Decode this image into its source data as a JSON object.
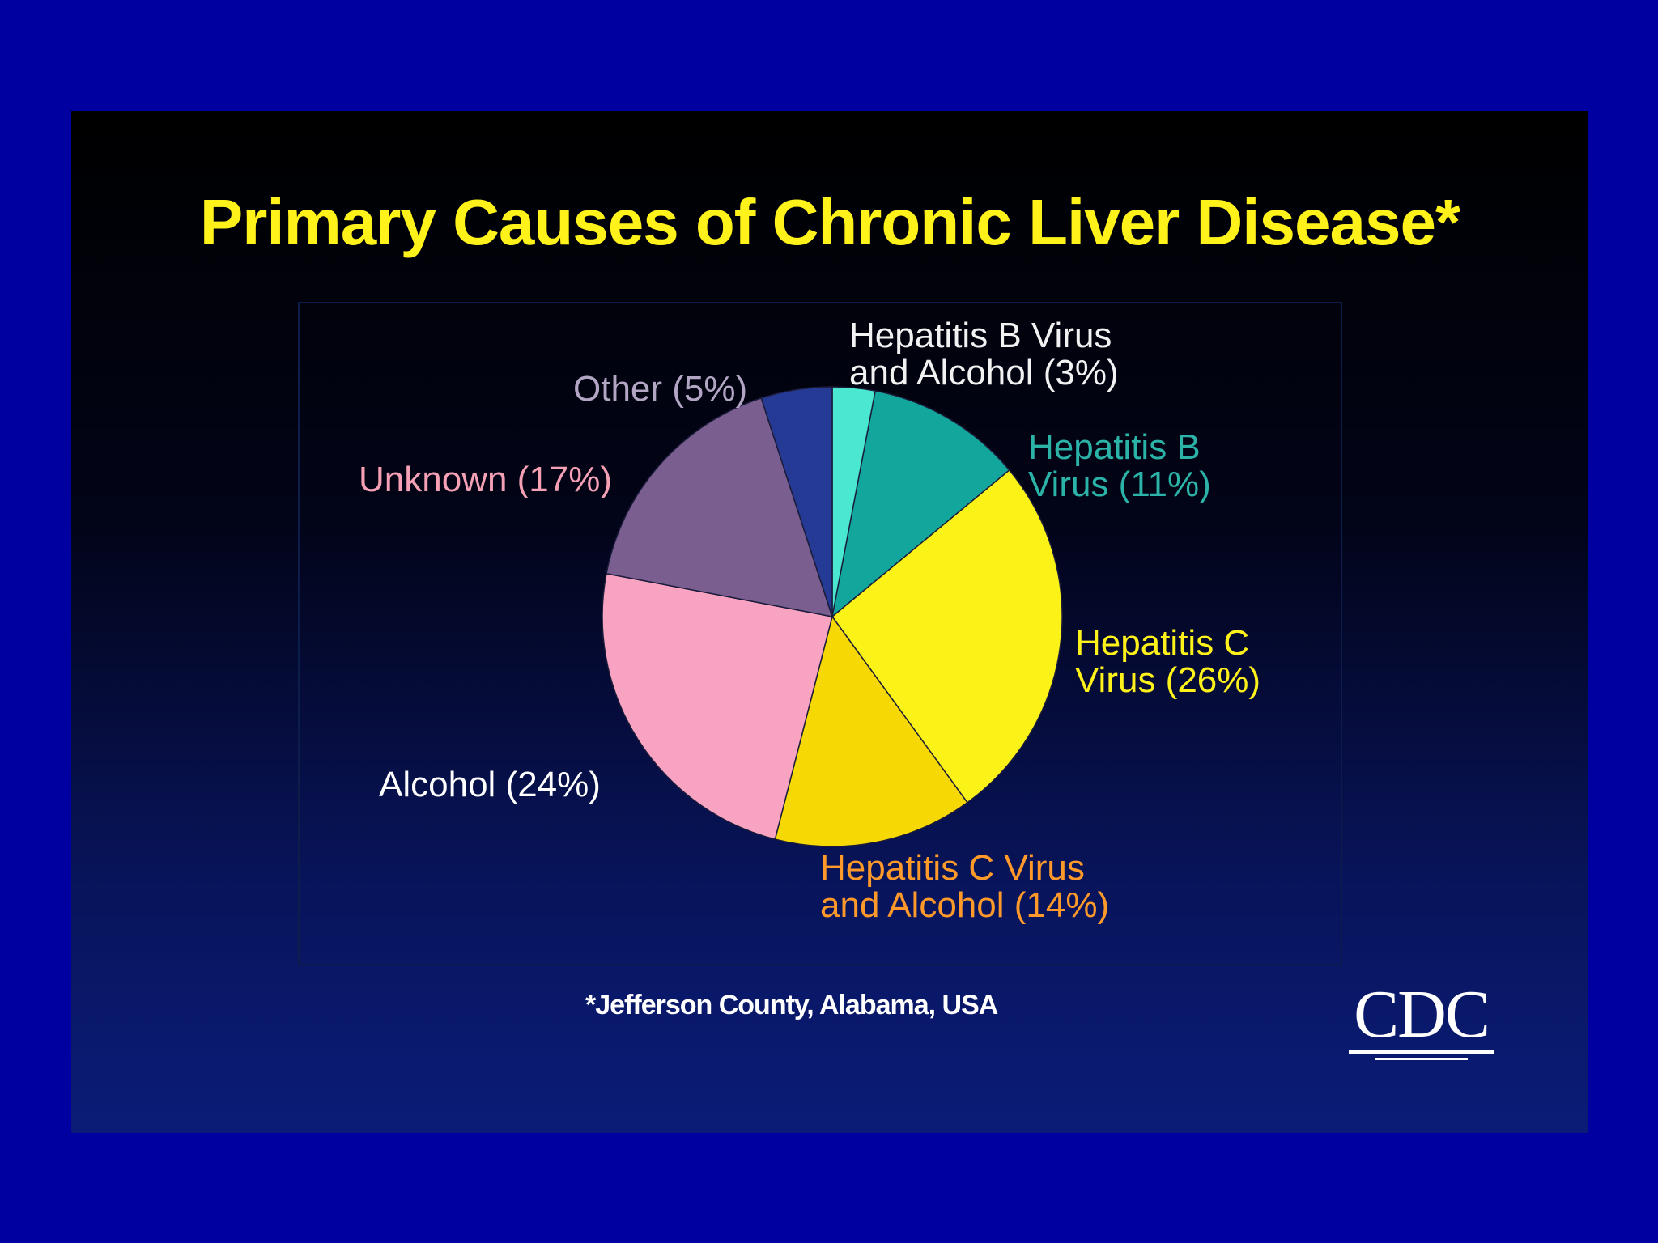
{
  "chart_data": {
    "type": "pie",
    "title": "Primary Causes of Chronic Liver Disease*",
    "footnote": "*Jefferson County, Alabama, USA",
    "slices": [
      {
        "label_lines": [
          "Hepatitis B Virus",
          "and Alcohol (3%)"
        ],
        "value": 3,
        "color": "#4ae8d0",
        "label_color": "#f2f2f2"
      },
      {
        "label_lines": [
          "Hepatitis B",
          "Virus (11%)"
        ],
        "value": 11,
        "color": "#13a69c",
        "label_color": "#2bb3a8"
      },
      {
        "label_lines": [
          "Hepatitis C",
          "Virus (26%)"
        ],
        "value": 26,
        "color": "#fbf217",
        "label_color": "#fff21a"
      },
      {
        "label_lines": [
          "Hepatitis C Virus",
          "and Alcohol (14%)"
        ],
        "value": 14,
        "color": "#f6d904",
        "label_color": "#ff9a2a"
      },
      {
        "label_lines": [
          "Alcohol (24%)"
        ],
        "value": 24,
        "color": "#f8a3c2",
        "label_color": "#ffffff"
      },
      {
        "label_lines": [
          "Unknown (17%)"
        ],
        "value": 17,
        "color": "#7a5e90",
        "label_color": "#f5a0b4"
      },
      {
        "label_lines": [
          "Other (5%)"
        ],
        "value": 5,
        "color": "#243a94",
        "label_color": "#b3a6c4"
      }
    ]
  },
  "logo": {
    "text": "CDC"
  }
}
